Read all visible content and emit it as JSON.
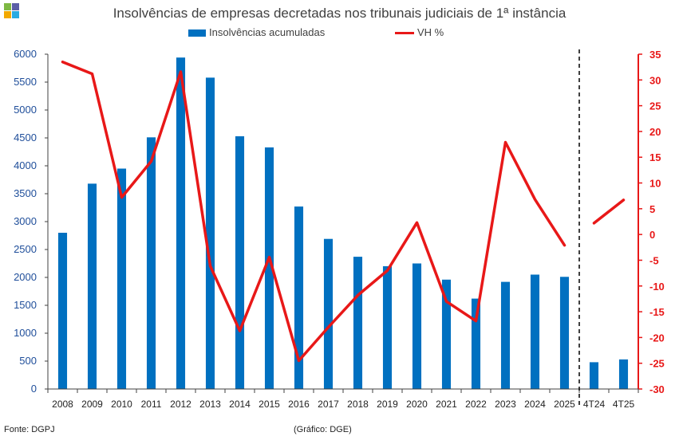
{
  "header": {
    "title": "Insolvências de empresas decretadas nos tribunais judiciais de 1ª instância"
  },
  "footer": {
    "source": "Fonte: DGPJ",
    "credit": "(Gráfico: DGE)"
  },
  "colors": {
    "bars": "#0070C0",
    "line": "#E81818",
    "axis": "#404040"
  },
  "chart_data": {
    "type": "bar",
    "title": "Insolvências de empresas decretadas nos tribunais judiciais de 1ª instância",
    "categories": [
      "2008",
      "2009",
      "2010",
      "2011",
      "2012",
      "2013",
      "2014",
      "2015",
      "2016",
      "2017",
      "2018",
      "2019",
      "2020",
      "2021",
      "2022",
      "2023",
      "2024",
      "2025",
      "4T24",
      "4T25"
    ],
    "series": [
      {
        "name": "Insolvências acumuladas",
        "type": "bar",
        "axis": "left",
        "values": [
          2800,
          3680,
          3950,
          4510,
          5940,
          5580,
          4530,
          4330,
          3270,
          2690,
          2370,
          2200,
          2250,
          1960,
          1620,
          1920,
          2050,
          2010,
          480,
          530
        ]
      },
      {
        "name": "VH %",
        "type": "line",
        "axis": "right",
        "values": [
          33.5,
          31.2,
          7.2,
          14.2,
          31.6,
          -6.1,
          -18.7,
          -4.4,
          -24.5,
          -18.0,
          -11.8,
          -7.0,
          2.3,
          -13.0,
          -16.8,
          17.9,
          6.8,
          -2.1,
          2.2,
          6.7
        ],
        "breaks_before": [
          "4T24"
        ]
      }
    ],
    "y_left": {
      "min": 0,
      "max": 6000,
      "step": 500,
      "ticks": [
        "0",
        "500",
        "1000",
        "1500",
        "2000",
        "2500",
        "3000",
        "3500",
        "4000",
        "4500",
        "5000",
        "5500",
        "6000"
      ]
    },
    "y_right": {
      "min": -30,
      "max": 35,
      "step": 5,
      "ticks": [
        "-30",
        "-25",
        "-20",
        "-15",
        "-10",
        "-5",
        "0",
        "5",
        "10",
        "15",
        "20",
        "25",
        "30",
        "35"
      ]
    },
    "separator_after": "2025",
    "legend": "top-center",
    "grid": false
  }
}
